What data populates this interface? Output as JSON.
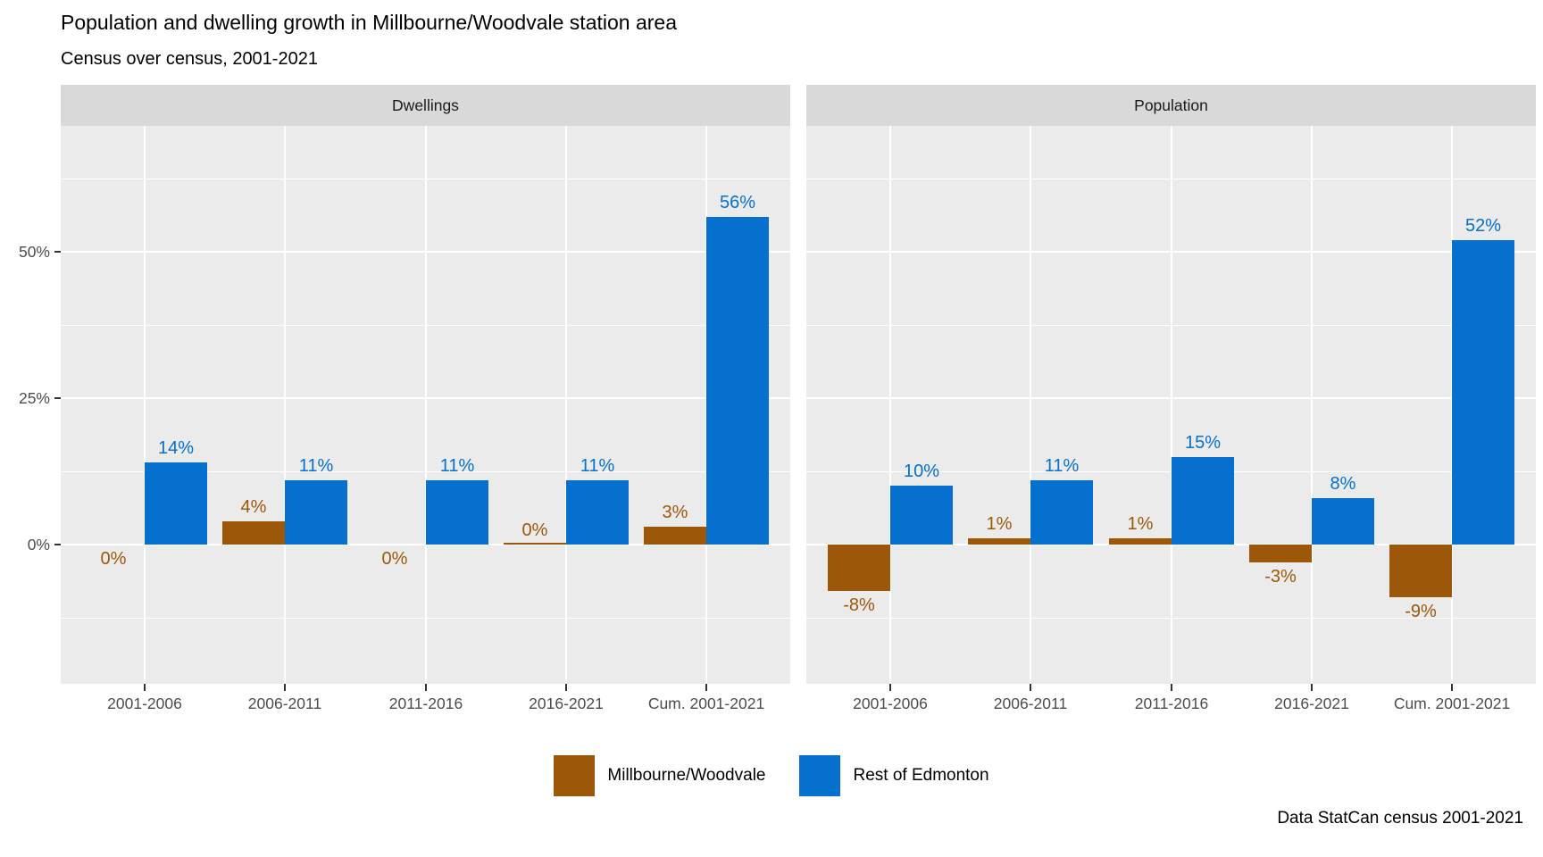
{
  "header": {
    "title": "Population and dwelling growth in Millbourne/Woodvale station area",
    "subtitle": "Census over census, 2001-2021"
  },
  "caption": "Data StatCan census 2001-2021",
  "colors": {
    "millbourne": "#9c5708",
    "rest_of_edmonton": "#0570cd",
    "panel_bg": "#ebebeb",
    "strip_bg": "#d9d9d9",
    "gridline": "#ffffff",
    "axis_text": "#4d4d4d",
    "tick": "#333333"
  },
  "legend": {
    "items": [
      {
        "label": "Millbourne/Woodvale",
        "color_key": "millbourne"
      },
      {
        "label": "Rest of Edmonton",
        "color_key": "rest_of_edmonton"
      }
    ]
  },
  "chart_data": {
    "type": "bar",
    "categories": [
      "2001-2006",
      "2006-2011",
      "2011-2016",
      "2016-2021",
      "Cum. 2001-2021"
    ],
    "y_axis": {
      "tick_labels": [
        "50%",
        "25%",
        "0%"
      ],
      "major_breaks": [
        50,
        25,
        0
      ],
      "minor_breaks": [
        62.5,
        37.5,
        12.5,
        -12.5
      ],
      "ylim": [
        -23.8,
        71.5
      ]
    },
    "legend_position": "bottom",
    "facets": [
      {
        "label": "Dwellings",
        "series": [
          {
            "name": "Millbourne/Woodvale",
            "color_key": "millbourne",
            "values": [
              0,
              4,
              0,
              0,
              3
            ],
            "labels": [
              "0%",
              "4%",
              "0%",
              "0%",
              "3%"
            ],
            "label_pos": [
              "below",
              "above",
              "below",
              "above",
              "above"
            ]
          },
          {
            "name": "Rest of Edmonton",
            "color_key": "rest_of_edmonton",
            "values": [
              14,
              11,
              11,
              11,
              56
            ],
            "labels": [
              "14%",
              "11%",
              "11%",
              "11%",
              "56%"
            ],
            "label_pos": [
              "above",
              "above",
              "above",
              "above",
              "above"
            ]
          }
        ]
      },
      {
        "label": "Population",
        "series": [
          {
            "name": "Millbourne/Woodvale",
            "color_key": "millbourne",
            "values": [
              -8,
              1,
              1,
              -3,
              -9
            ],
            "labels": [
              "-8%",
              "1%",
              "1%",
              "-3%",
              "-9%"
            ],
            "label_pos": [
              "below",
              "above",
              "above",
              "below",
              "below"
            ]
          },
          {
            "name": "Rest of Edmonton",
            "color_key": "rest_of_edmonton",
            "values": [
              10,
              11,
              15,
              8,
              52
            ],
            "labels": [
              "10%",
              "11%",
              "15%",
              "8%",
              "52%"
            ],
            "label_pos": [
              "above",
              "above",
              "above",
              "above",
              "above"
            ]
          }
        ]
      }
    ]
  }
}
